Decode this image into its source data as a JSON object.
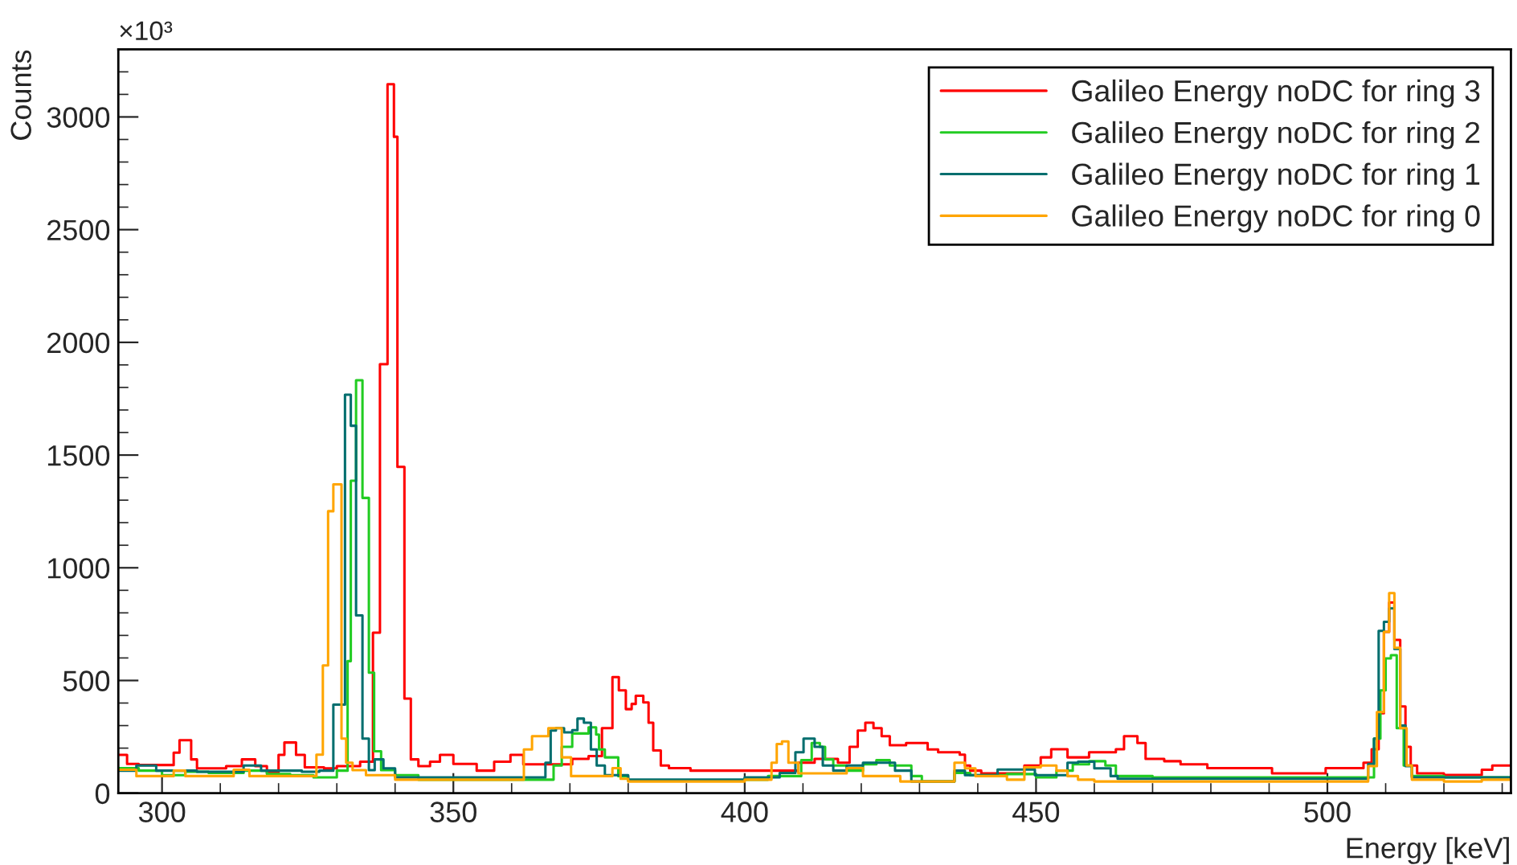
{
  "chart_data": {
    "type": "step",
    "xlabel": "Energy [keV]",
    "ylabel": "Counts",
    "annotations": [
      "×10³"
    ],
    "xlim": [
      292.5,
      531.5
    ],
    "ylim": [
      0,
      3300
    ],
    "xticks": [
      300,
      350,
      400,
      450,
      500
    ],
    "yticks": [
      0,
      500,
      1000,
      1500,
      2000,
      2500,
      3000
    ],
    "legend": "top right",
    "grid": false,
    "series": [
      {
        "name": "Galileo Energy noDC for ring 3",
        "color": "#ff0000",
        "x": [
          292.5,
          294,
          296,
          302,
          303,
          305,
          306,
          311,
          313.7,
          316,
          318,
          320,
          321,
          323,
          324.5,
          327.8,
          330,
          334,
          336.2,
          337.4,
          338.7,
          339.8,
          340.4,
          341.6,
          342.7,
          344,
          346,
          347.7,
          350,
          354,
          357,
          359.8,
          362,
          370.4,
          373.2,
          375.5,
          377.3,
          378.4,
          379.6,
          380.6,
          381.3,
          382.6,
          383.5,
          384.3,
          385.6,
          387,
          390.7,
          409.2,
          412,
          416,
          418,
          419.4,
          420.7,
          422.1,
          423.5,
          424.9,
          427.7,
          431.4,
          433.2,
          436.9,
          437.8,
          438.7,
          440.6,
          448,
          450.8,
          452.6,
          455.4,
          459.1,
          463.7,
          465.1,
          467.4,
          468.8,
          472,
          474.8,
          479.4,
          490.5,
          499.7,
          506.2,
          507.6,
          508.8,
          509.7,
          510.6,
          511.5,
          512.5,
          513.4,
          514.3,
          515.4,
          520,
          526.5,
          528.3,
          531.5
        ],
        "values": [
          170,
          130,
          125,
          180,
          235,
          150,
          110,
          120,
          150,
          120,
          90,
          170,
          225,
          170,
          115,
          110,
          120,
          140,
          712,
          1903,
          3145,
          2912,
          1448,
          420,
          150,
          120,
          140,
          170,
          130,
          100,
          140,
          170,
          128,
          152,
          165,
          289,
          515,
          456,
          373,
          396,
          432,
          403,
          313,
          190,
          123,
          111,
          100,
          135,
          152,
          135,
          206,
          278,
          313,
          289,
          253,
          213,
          223,
          194,
          182,
          171,
          123,
          100,
          88,
          123,
          159,
          195,
          159,
          182,
          195,
          253,
          223,
          152,
          142,
          128,
          111,
          88,
          111,
          135,
          195,
          355,
          716,
          846,
          680,
          385,
          206,
          123,
          88,
          81,
          104,
          123,
          123
        ]
      },
      {
        "name": "Galileo Energy noDC for ring 2",
        "color": "#22cc22",
        "x": [
          292.5,
          296,
          300,
          304,
          308,
          314,
          318,
          322,
          326,
          330,
          331.85,
          332.4,
          333.3,
          334.4,
          335.5,
          336.4,
          337.6,
          340,
          344,
          362.1,
          367.2,
          368.6,
          370.4,
          373.2,
          374.5,
          375,
          376,
          378.3,
          380,
          400,
          404,
          409.7,
          411.5,
          412.9,
          413.8,
          415.2,
          417.5,
          420.3,
          422.6,
          424.9,
          428.6,
          430.4,
          436,
          438.7,
          445,
          450,
          453.5,
          456.3,
          459.1,
          461.9,
          463.7,
          470,
          500,
          508,
          509.1,
          510,
          510.9,
          511.9,
          513.1,
          514.5,
          520,
          531.5
        ],
        "values": [
          111,
          100,
          80,
          95,
          90,
          100,
          85,
          80,
          70,
          100,
          586,
          1386,
          1832,
          1310,
          535,
          186,
          102,
          80,
          60,
          60,
          123,
          206,
          265,
          292,
          260,
          194,
          159,
          76,
          55,
          60,
          76,
          147,
          223,
          206,
          150,
          123,
          100,
          128,
          147,
          123,
          76,
          52,
          90,
          80,
          85,
          70,
          100,
          128,
          142,
          123,
          76,
          70,
          70,
          242,
          456,
          598,
          612,
          289,
          123,
          76,
          70,
          70
        ]
      },
      {
        "name": "Galileo Energy noDC for ring 1",
        "color": "#006e6e",
        "x": [
          292.5,
          295.6,
          299,
          306,
          314,
          317,
          324,
          327,
          329.4,
          331.4,
          332.4,
          333.3,
          334.4,
          335.5,
          336.5,
          338,
          340,
          362.1,
          365.8,
          366.7,
          367.6,
          369,
          370.4,
          371.3,
          372.4,
          373.6,
          374.6,
          376,
          380,
          400,
          406,
          408.7,
          410.1,
          412,
          413.4,
          415.2,
          417.5,
          420.3,
          423,
          425.8,
          428.6,
          436,
          437.8,
          443.4,
          449.8,
          455.4,
          457.2,
          460,
          462.8,
          464,
          507,
          508,
          508.8,
          509.7,
          510.6,
          511.5,
          512.5,
          513.4,
          514.5,
          520,
          531.5
        ],
        "values": [
          100,
          123,
          100,
          95,
          123,
          100,
          95,
          100,
          393,
          1768,
          1630,
          789,
          242,
          102,
          150,
          110,
          70,
          70,
          135,
          278,
          289,
          270,
          280,
          331,
          313,
          194,
          123,
          80,
          60,
          70,
          90,
          182,
          242,
          206,
          123,
          100,
          123,
          135,
          135,
          100,
          52,
          100,
          80,
          105,
          80,
          135,
          140,
          110,
          76,
          64,
          130,
          242,
          720,
          760,
          820,
          640,
          300,
          120,
          70,
          70,
          70
        ]
      },
      {
        "name": "Galileo Energy noDC for ring 0",
        "color": "#ffa500",
        "x": [
          292.5,
          295.6,
          300,
          302,
          304,
          312,
          312.3,
          315,
          324,
          326.5,
          327.6,
          328.5,
          329.4,
          330.8,
          331.6,
          332.7,
          335,
          340,
          362.1,
          363.5,
          366.3,
          368.6,
          370.2,
          377.3,
          378.7,
          380,
          400,
          404.6,
          405.5,
          406.4,
          407.5,
          409.2,
          417.5,
          420.3,
          426.7,
          434,
          436,
          437.8,
          439.6,
          445,
          448,
          450.8,
          453.5,
          455.4,
          457.2,
          460,
          507,
          508.5,
          509.7,
          510.6,
          511.5,
          512.5,
          513.6,
          514.5,
          520,
          526.5,
          531.5
        ],
        "values": [
          104,
          76,
          76,
          100,
          76,
          76,
          104,
          76,
          76,
          171,
          567,
          1251,
          1370,
          242,
          135,
          102,
          80,
          60,
          194,
          253,
          289,
          159,
          76,
          111,
          64,
          52,
          60,
          135,
          218,
          230,
          135,
          88,
          111,
          76,
          52,
          52,
          135,
          110,
          76,
          60,
          115,
          123,
          100,
          76,
          60,
          52,
          120,
          360,
          716,
          888,
          645,
          289,
          123,
          60,
          52,
          60,
          60
        ]
      }
    ]
  }
}
